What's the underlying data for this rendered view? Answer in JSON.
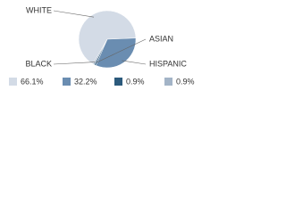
{
  "chart_data": {
    "type": "pie",
    "categories": [
      "WHITE",
      "HISPANIC",
      "ASIAN",
      "BLACK"
    ],
    "values": [
      66.1,
      32.2,
      0.9,
      0.9
    ],
    "value_labels": [
      "66.1%",
      "32.2%",
      "0.9%",
      "0.9%"
    ],
    "colors": [
      "#d3dbe6",
      "#6a8db1",
      "#2c5a7c",
      "#a3b4c7"
    ]
  }
}
